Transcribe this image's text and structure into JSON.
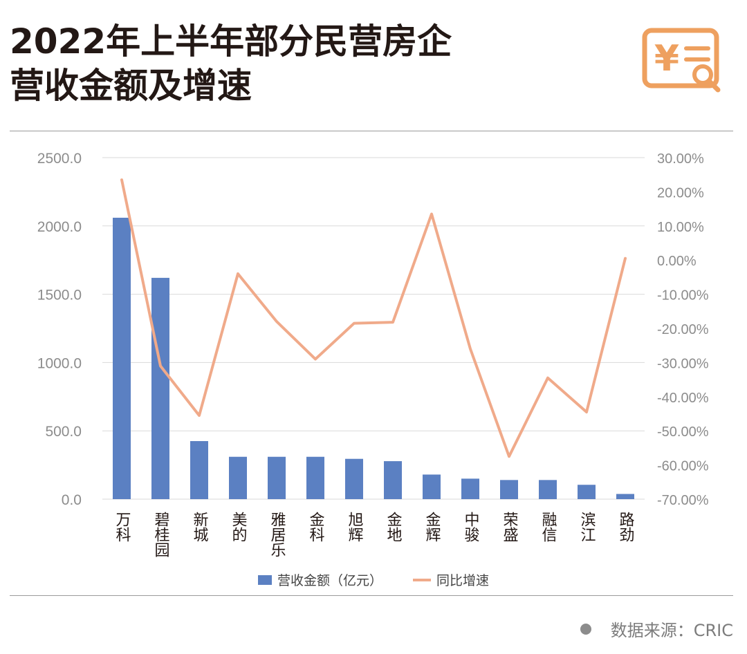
{
  "title": {
    "line1": "2022年上半年部分民营房企",
    "line2": "营收金额及增速"
  },
  "logo": {
    "icon": "yuan-document-search-icon",
    "symbol": "¥",
    "color": "#eea05f"
  },
  "source": {
    "text": "数据来源：CRIC"
  },
  "colors": {
    "bar": "#5b80c2",
    "line": "#f0aa8a",
    "grid": "#d9d9d9",
    "axis_text": "#8c8c8c"
  },
  "chart_data": {
    "type": "bar",
    "categories": [
      "万科",
      "碧桂园",
      "新城",
      "美的",
      "雅居乐",
      "金科",
      "旭辉",
      "金地",
      "金辉",
      "中骏",
      "荣盛",
      "融信",
      "滨江",
      "路劲"
    ],
    "series": [
      {
        "name": "营收金额（亿元）",
        "type": "bar",
        "axis": "left",
        "values": [
          2060,
          1620,
          425,
          310,
          310,
          310,
          295,
          278,
          180,
          150,
          140,
          140,
          105,
          38
        ]
      },
      {
        "name": "同比增速",
        "type": "line",
        "axis": "right",
        "values": [
          23.5,
          -31,
          -45.5,
          -4,
          -18,
          -29,
          -18.5,
          -18.2,
          13.5,
          -26,
          -57.5,
          -34.5,
          -44.5,
          0.5
        ]
      }
    ],
    "left_axis": {
      "ylim": [
        0,
        2500
      ],
      "ticks": [
        "0.0",
        "500.0",
        "1000.0",
        "1500.0",
        "2000.0",
        "2500.0"
      ]
    },
    "right_axis": {
      "ylim": [
        -70,
        30
      ],
      "ticks": [
        "-70.00%",
        "-60.00%",
        "-50.00%",
        "-40.00%",
        "-30.00%",
        "-20.00%",
        "-10.00%",
        "0.00%",
        "10.00%",
        "20.00%",
        "30.00%"
      ]
    },
    "grid": true,
    "legend_position": "bottom"
  }
}
